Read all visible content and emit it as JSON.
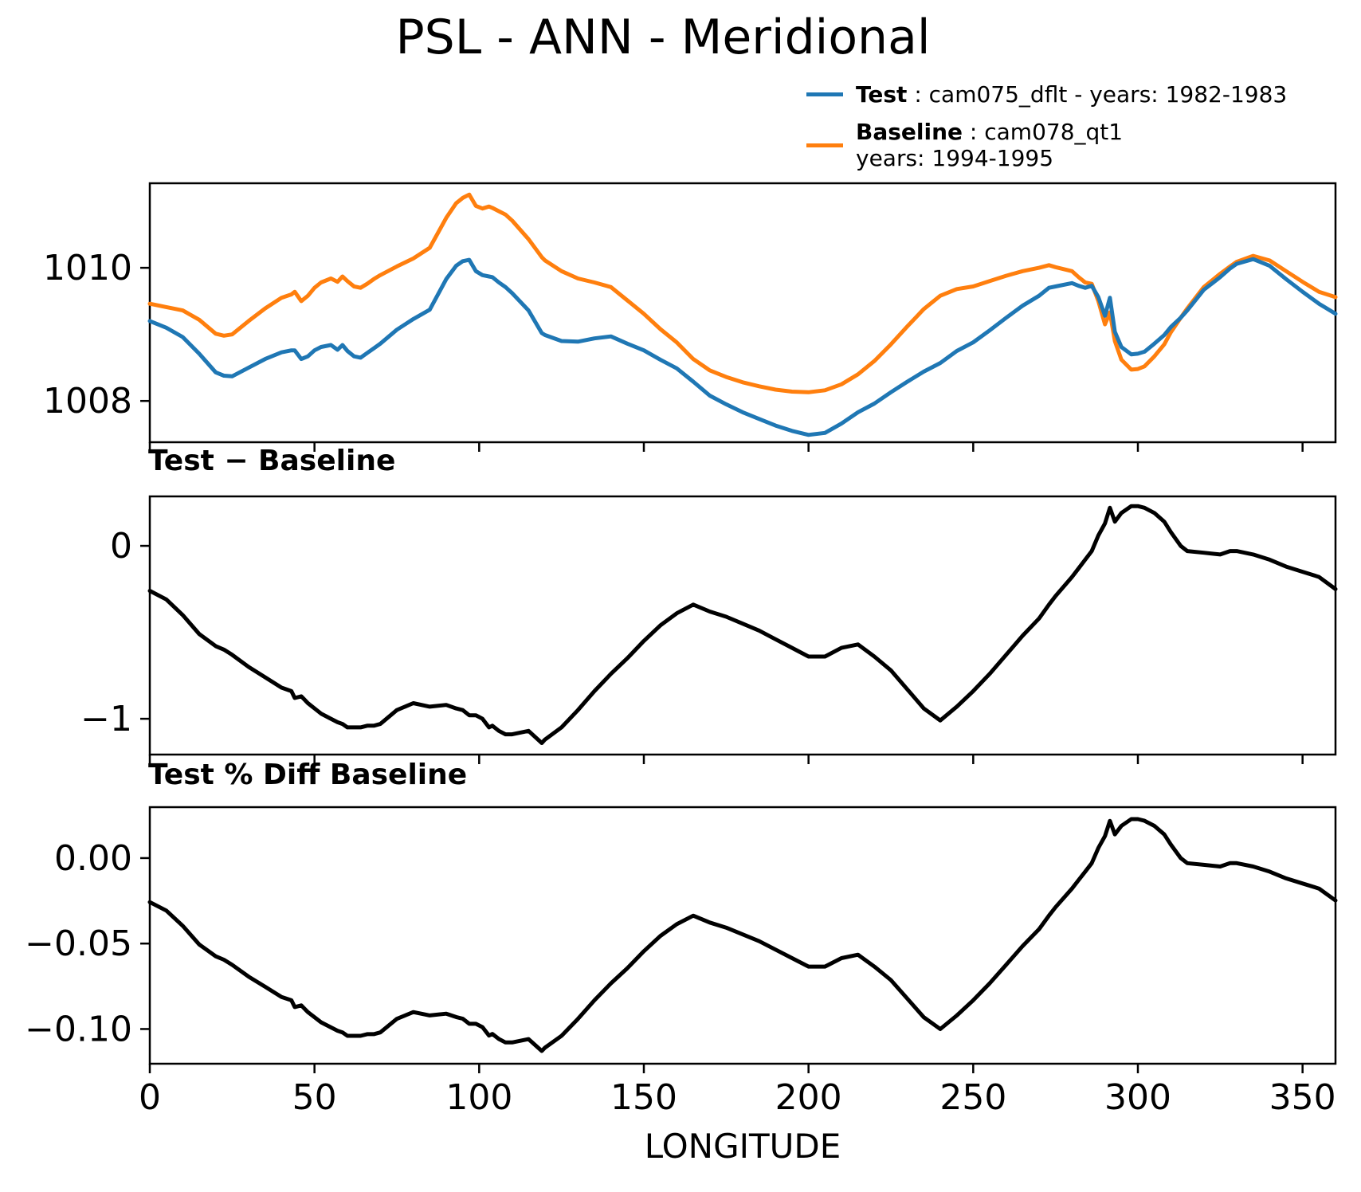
{
  "title": "PSL - ANN - Meridional",
  "legend": {
    "test_label": "Test",
    "test_rest": " : cam075_dflt - years: 1982-1983",
    "baseline_label": "Baseline",
    "baseline_rest": " : cam078_qt1",
    "baseline_years": "years: 1994-1995"
  },
  "subplot_titles": {
    "diff": "Test − Baseline",
    "pct": "Test % Diff Baseline"
  },
  "xlabel": "LONGITUDE",
  "colors": {
    "test": "#1f77b4",
    "baseline": "#ff7f0e",
    "line": "#000000"
  },
  "chart_data": {
    "type": "line",
    "panels": [
      {
        "id": "top",
        "series_names": [
          "Test",
          "Baseline"
        ],
        "ylim": [
          1007.38,
          1011.27
        ],
        "ytick_values": [
          1008,
          1010
        ],
        "ytick_labels": [
          "1008",
          "1010"
        ],
        "note": "Test values = baseline[i] + diff[i]"
      },
      {
        "id": "middle",
        "title": "Test − Baseline",
        "ylim": [
          -1.207,
          0.286
        ],
        "ytick_values": [
          -1,
          0
        ],
        "ytick_labels": [
          "−1",
          "0"
        ]
      },
      {
        "id": "bottom",
        "title": "Test % Diff Baseline",
        "ylim": [
          -0.1203,
          0.0298
        ],
        "ytick_values": [
          -0.1,
          -0.05,
          0.0
        ],
        "ytick_labels": [
          "−0.10",
          "−0.05",
          "0.00"
        ],
        "note": "pct values = diff[i] / baseline[i] * 100"
      }
    ],
    "xlabel": "LONGITUDE",
    "xlim": [
      0,
      360
    ],
    "xtick_values": [
      0,
      50,
      100,
      150,
      200,
      250,
      300,
      350
    ],
    "xtick_labels": [
      "0",
      "50",
      "100",
      "150",
      "200",
      "250",
      "300",
      "350"
    ],
    "x": [
      0,
      5,
      10,
      15,
      20,
      22.5,
      25,
      30,
      35,
      40,
      43,
      44,
      46,
      48,
      50,
      52,
      55,
      57,
      58.5,
      60,
      62,
      64,
      66,
      68,
      70,
      75,
      80,
      85,
      90,
      93,
      95,
      97,
      99,
      101,
      103,
      104,
      106,
      108,
      110,
      115,
      119,
      120,
      125,
      130,
      135,
      140,
      145,
      150,
      155,
      160,
      165,
      170,
      175,
      180,
      185,
      190,
      195,
      200,
      205,
      210,
      215,
      220,
      225,
      230,
      235,
      240,
      245,
      250,
      255,
      260,
      265,
      270,
      273,
      275,
      280,
      282,
      284,
      286,
      288,
      290,
      291.5,
      293,
      295,
      298,
      300,
      302,
      305,
      308,
      310,
      313,
      315,
      320,
      325,
      328,
      330,
      335,
      340,
      345,
      350,
      355,
      360
    ],
    "baseline": [
      1009.46,
      1009.41,
      1009.36,
      1009.22,
      1009.01,
      1008.98,
      1009.0,
      1009.2,
      1009.39,
      1009.55,
      1009.6,
      1009.64,
      1009.5,
      1009.58,
      1009.7,
      1009.78,
      1009.84,
      1009.79,
      1009.87,
      1009.8,
      1009.72,
      1009.7,
      1009.76,
      1009.83,
      1009.89,
      1010.02,
      1010.14,
      1010.3,
      1010.75,
      1010.97,
      1011.05,
      1011.1,
      1010.93,
      1010.89,
      1010.92,
      1010.9,
      1010.85,
      1010.8,
      1010.71,
      1010.43,
      1010.16,
      1010.11,
      1009.95,
      1009.84,
      1009.78,
      1009.71,
      1009.51,
      1009.31,
      1009.08,
      1008.88,
      1008.63,
      1008.46,
      1008.36,
      1008.28,
      1008.22,
      1008.17,
      1008.14,
      1008.13,
      1008.16,
      1008.25,
      1008.4,
      1008.6,
      1008.85,
      1009.12,
      1009.38,
      1009.58,
      1009.68,
      1009.72,
      1009.8,
      1009.88,
      1009.95,
      1010.0,
      1010.04,
      1010.01,
      1009.95,
      1009.86,
      1009.78,
      1009.76,
      1009.5,
      1009.15,
      1009.33,
      1008.9,
      1008.62,
      1008.47,
      1008.48,
      1008.52,
      1008.67,
      1008.85,
      1009.03,
      1009.25,
      1009.39,
      1009.71,
      1009.91,
      1010.02,
      1010.09,
      1010.18,
      1010.11,
      1009.95,
      1009.79,
      1009.64,
      1009.56
    ],
    "diff": [
      -0.26,
      -0.31,
      -0.4,
      -0.51,
      -0.58,
      -0.6,
      -0.63,
      -0.7,
      -0.76,
      -0.82,
      -0.84,
      -0.88,
      -0.87,
      -0.91,
      -0.94,
      -0.97,
      -1.0,
      -1.02,
      -1.03,
      -1.05,
      -1.05,
      -1.05,
      -1.04,
      -1.04,
      -1.03,
      -0.95,
      -0.91,
      -0.93,
      -0.92,
      -0.94,
      -0.95,
      -0.98,
      -0.98,
      -1.0,
      -1.05,
      -1.04,
      -1.07,
      -1.09,
      -1.09,
      -1.07,
      -1.14,
      -1.12,
      -1.05,
      -0.95,
      -0.84,
      -0.74,
      -0.65,
      -0.55,
      -0.46,
      -0.39,
      -0.34,
      -0.38,
      -0.41,
      -0.45,
      -0.49,
      -0.54,
      -0.59,
      -0.64,
      -0.64,
      -0.59,
      -0.57,
      -0.64,
      -0.72,
      -0.83,
      -0.94,
      -1.01,
      -0.93,
      -0.84,
      -0.74,
      -0.63,
      -0.52,
      -0.42,
      -0.34,
      -0.29,
      -0.18,
      -0.13,
      -0.08,
      -0.03,
      0.06,
      0.13,
      0.22,
      0.14,
      0.19,
      0.23,
      0.23,
      0.22,
      0.19,
      0.14,
      0.08,
      0.0,
      -0.03,
      -0.04,
      -0.05,
      -0.03,
      -0.03,
      -0.05,
      -0.08,
      -0.12,
      -0.15,
      -0.18,
      -0.25
    ]
  }
}
